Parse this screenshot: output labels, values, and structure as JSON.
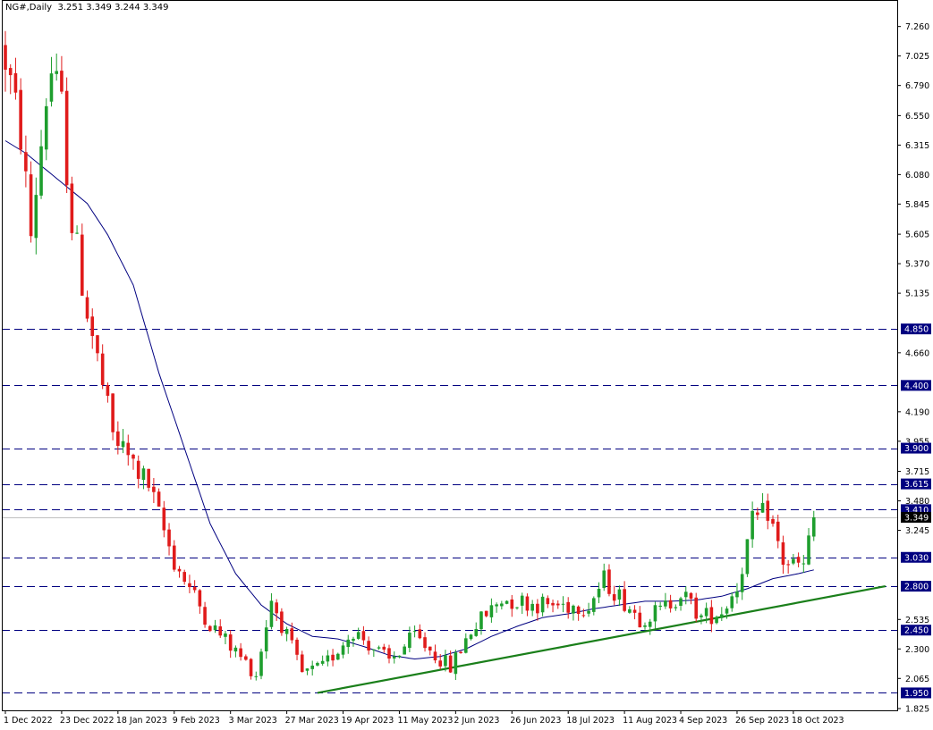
{
  "header": {
    "symbol": "NG#,Daily",
    "ohlc": "3.251 3.349 3.244 3.349"
  },
  "colors": {
    "background": "#ffffff",
    "bull": "#1e9e2e",
    "bear": "#e01b1b",
    "ma_line": "#000080",
    "level_line": "#000080",
    "trend_line": "#1a7f1a",
    "label_bg": "#000080",
    "label_text": "#ffffff",
    "current_bg": "#000000"
  },
  "chart_data": {
    "type": "candlestick",
    "ylim": [
      1.825,
      7.4
    ],
    "y_ticks": [
      "7.260",
      "7.025",
      "6.790",
      "6.550",
      "6.315",
      "6.080",
      "5.845",
      "5.605",
      "5.370",
      "5.135",
      "4.660",
      "4.190",
      "3.955",
      "3.715",
      "3.480",
      "3.245",
      "2.535",
      "2.300",
      "2.065",
      "1.825"
    ],
    "x_labels": [
      "1 Dec 2022",
      "23 Dec 2022",
      "18 Jan 2023",
      "9 Feb 2023",
      "3 Mar 2023",
      "27 Mar 2023",
      "19 Apr 2023",
      "11 May 2023",
      "2 Jun 2023",
      "26 Jun 2023",
      "18 Jul 2023",
      "11 Aug 2023",
      "4 Sep 2023",
      "26 Sep 2023",
      "18 Oct 2023"
    ],
    "levels": [
      {
        "value": 4.85,
        "label": "4.850"
      },
      {
        "value": 4.4,
        "label": "4.400"
      },
      {
        "value": 3.9,
        "label": "3.900"
      },
      {
        "value": 3.615,
        "label": "3.615"
      },
      {
        "value": 3.41,
        "label": "3.410"
      },
      {
        "value": 3.03,
        "label": "3.030"
      },
      {
        "value": 2.8,
        "label": "2.800"
      },
      {
        "value": 2.45,
        "label": "2.450"
      },
      {
        "value": 1.95,
        "label": "1.950"
      }
    ],
    "current_price": {
      "value": 3.349,
      "label": "3.349"
    },
    "trendline": {
      "from": [
        61,
        1.95
      ],
      "to": [
        172,
        2.8
      ]
    },
    "waypoints": [
      [
        0,
        7.0
      ],
      [
        3,
        6.4
      ],
      [
        5,
        5.6
      ],
      [
        8,
        6.7
      ],
      [
        9,
        6.9
      ],
      [
        11,
        6.6
      ],
      [
        13,
        5.7
      ],
      [
        16,
        5.0
      ],
      [
        21,
        4.0
      ],
      [
        28,
        3.6
      ],
      [
        33,
        3.0
      ],
      [
        40,
        2.5
      ],
      [
        49,
        2.1
      ],
      [
        52,
        2.7
      ],
      [
        58,
        2.1
      ],
      [
        62,
        2.15
      ],
      [
        68,
        2.45
      ],
      [
        75,
        2.2
      ],
      [
        80,
        2.4
      ],
      [
        87,
        2.15
      ],
      [
        91,
        2.45
      ],
      [
        97,
        2.7
      ],
      [
        106,
        2.65
      ],
      [
        114,
        2.65
      ],
      [
        117,
        2.85
      ],
      [
        124,
        2.55
      ],
      [
        128,
        2.6
      ],
      [
        132,
        2.75
      ],
      [
        136,
        2.55
      ],
      [
        140,
        2.6
      ],
      [
        143,
        2.8
      ],
      [
        146,
        3.3
      ],
      [
        149,
        3.4
      ],
      [
        152,
        3.0
      ],
      [
        156,
        2.95
      ],
      [
        158,
        3.349
      ]
    ],
    "ma_points": [
      [
        0,
        6.35
      ],
      [
        4,
        6.25
      ],
      [
        10,
        6.05
      ],
      [
        16,
        5.85
      ],
      [
        20,
        5.6
      ],
      [
        25,
        5.2
      ],
      [
        30,
        4.5
      ],
      [
        35,
        3.9
      ],
      [
        40,
        3.3
      ],
      [
        45,
        2.9
      ],
      [
        50,
        2.65
      ],
      [
        55,
        2.5
      ],
      [
        60,
        2.4
      ],
      [
        65,
        2.38
      ],
      [
        70,
        2.32
      ],
      [
        75,
        2.25
      ],
      [
        80,
        2.22
      ],
      [
        85,
        2.24
      ],
      [
        90,
        2.3
      ],
      [
        95,
        2.4
      ],
      [
        100,
        2.48
      ],
      [
        105,
        2.55
      ],
      [
        110,
        2.58
      ],
      [
        115,
        2.62
      ],
      [
        120,
        2.65
      ],
      [
        125,
        2.68
      ],
      [
        130,
        2.68
      ],
      [
        135,
        2.69
      ],
      [
        140,
        2.72
      ],
      [
        145,
        2.78
      ],
      [
        150,
        2.86
      ],
      [
        155,
        2.9
      ],
      [
        158,
        2.93
      ]
    ],
    "n_candles": 159
  }
}
